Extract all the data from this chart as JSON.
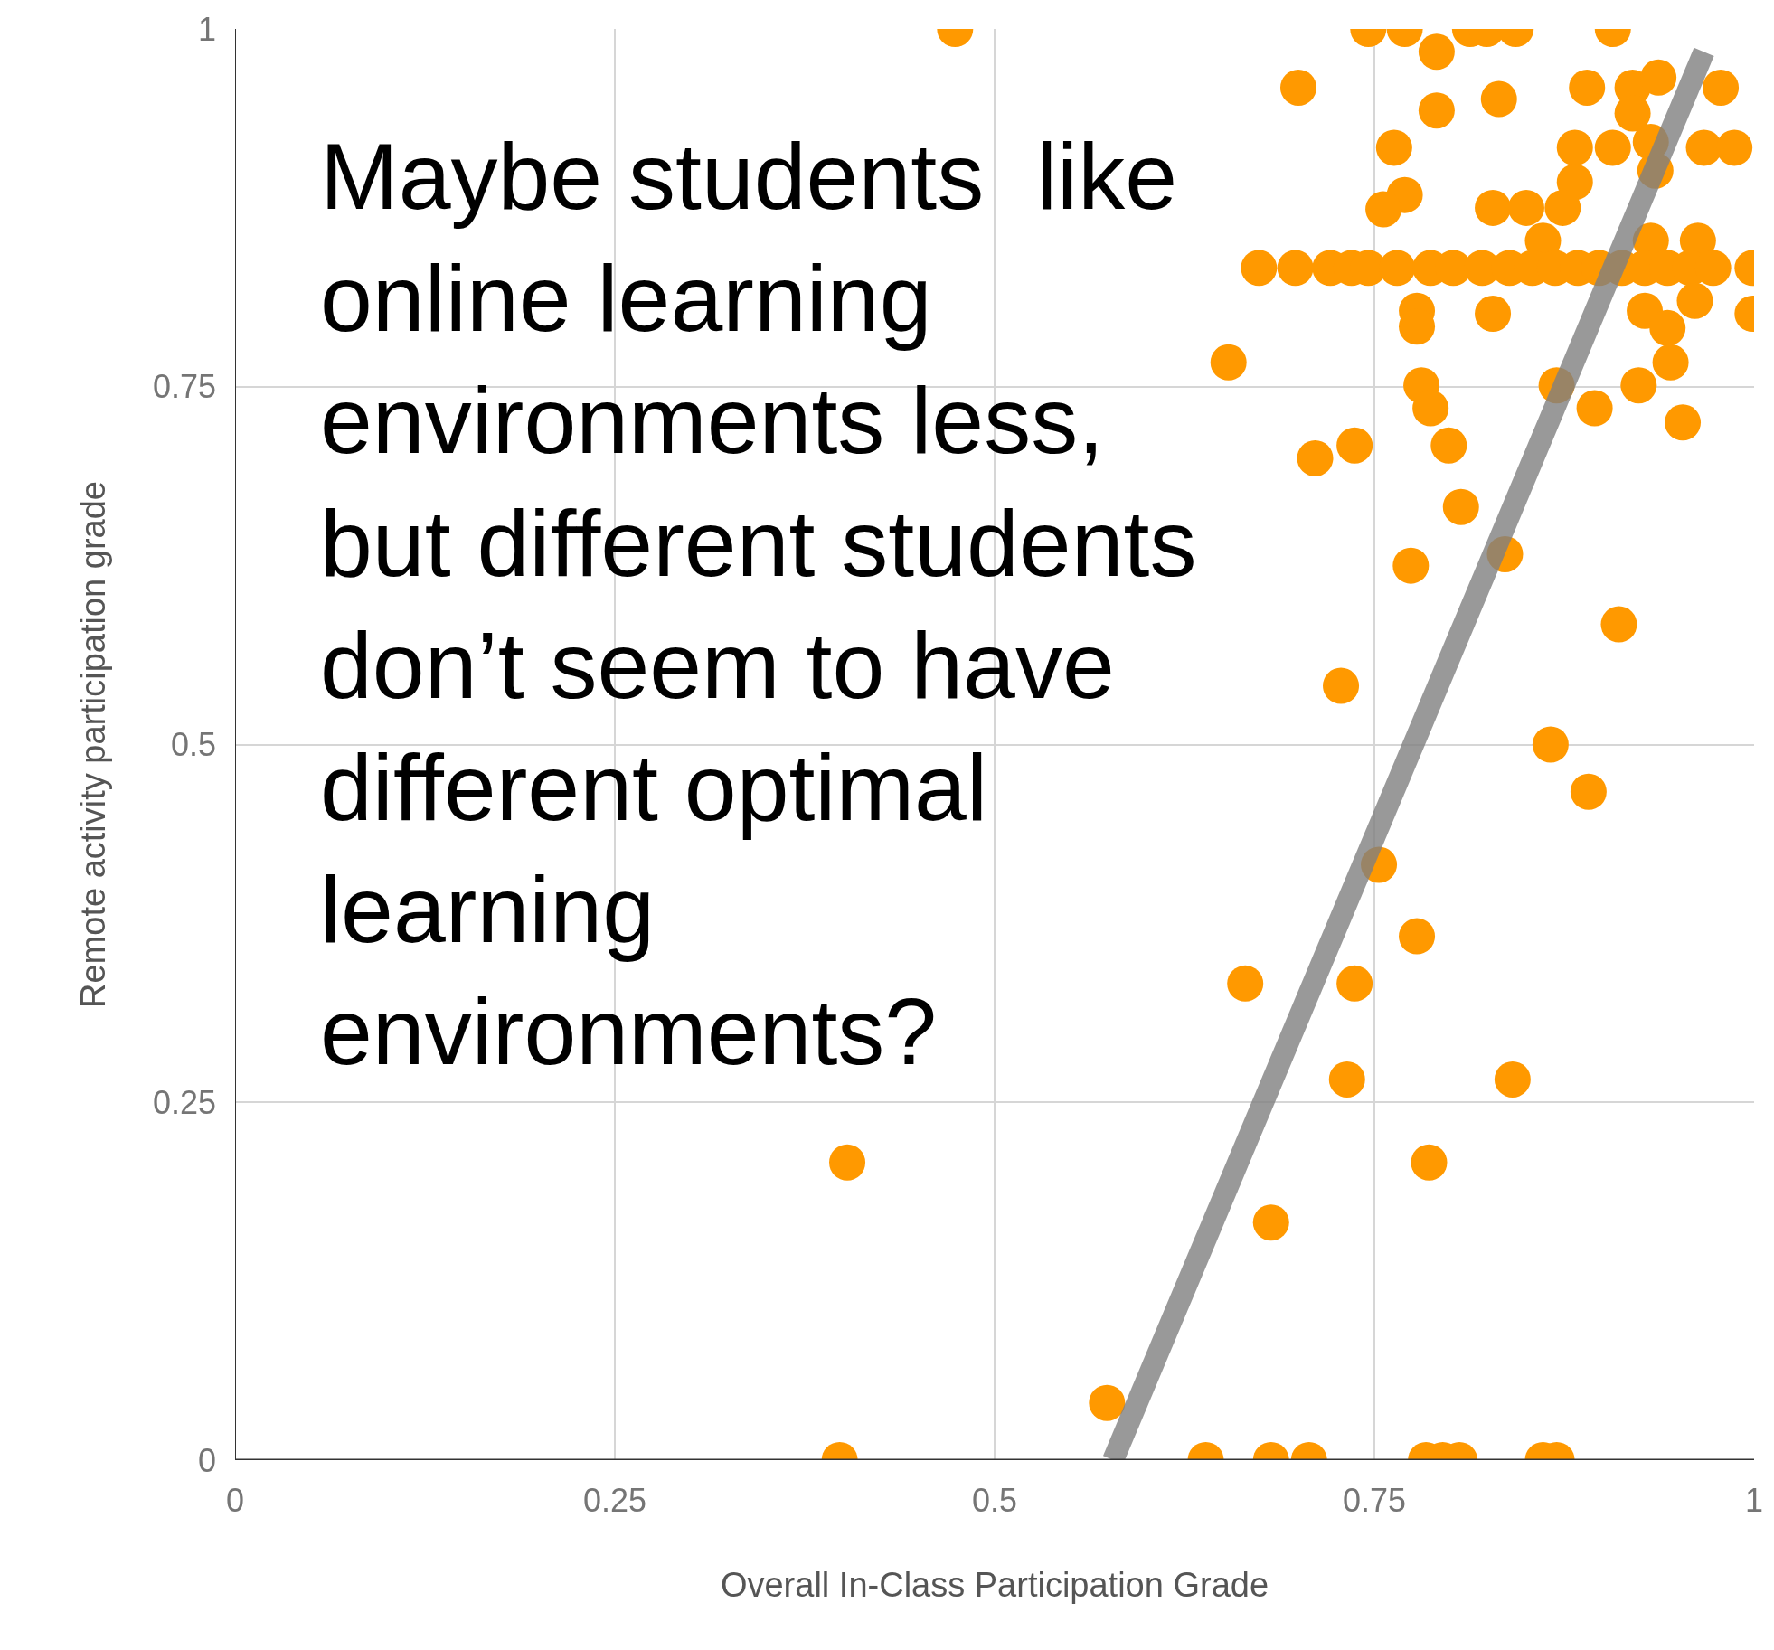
{
  "chart_data": {
    "type": "scatter",
    "xlabel": "Overall In-Class Participation Grade",
    "ylabel": "Remote activity participation grade",
    "annotations": [
      "Maybe students  like\nonline learning\nenvironments less,\nbut different students\ndon’t seem to have\ndifferent optimal\nlearning\nenvironments?"
    ],
    "xlim": [
      0,
      1
    ],
    "ylim": [
      0,
      1
    ],
    "xticks": [
      0,
      0.25,
      0.5,
      0.75,
      1
    ],
    "yticks": [
      0,
      0.25,
      0.5,
      0.75,
      1
    ],
    "grid": true,
    "series": [
      {
        "color": "#ff9900",
        "marker": "circle",
        "x": [
          0.474,
          0.746,
          0.77,
          0.813,
          0.824,
          0.843,
          0.907,
          0.791,
          0.7,
          0.89,
          0.92,
          0.937,
          0.978,
          0.832,
          0.791,
          0.92,
          0.763,
          0.882,
          0.907,
          0.932,
          0.967,
          0.987,
          0.935,
          0.882,
          0.77,
          0.756,
          0.828,
          0.85,
          0.874,
          0.861,
          0.932,
          0.963,
          0.674,
          0.698,
          0.721,
          0.735,
          0.746,
          0.765,
          0.787,
          0.802,
          0.821,
          0.839,
          0.854,
          0.869,
          0.884,
          0.898,
          0.913,
          0.928,
          0.943,
          0.958,
          0.973,
          0.999,
          0.778,
          0.778,
          0.828,
          0.928,
          0.943,
          0.961,
          0.999,
          0.654,
          0.945,
          0.781,
          0.87,
          0.924,
          0.787,
          0.895,
          0.953,
          0.711,
          0.737,
          0.799,
          0.807,
          0.836,
          0.774,
          0.911,
          0.728,
          0.866,
          0.891,
          0.753,
          0.778,
          0.665,
          0.737,
          0.732,
          0.841,
          0.403,
          0.786,
          0.682,
          0.574,
          0.398,
          0.639,
          0.682,
          0.707,
          0.784,
          0.795,
          0.806,
          0.861,
          0.87
        ],
        "values": [
          1,
          1,
          1,
          1,
          1,
          1,
          1,
          0.984,
          0.959,
          0.959,
          0.959,
          0.966,
          0.959,
          0.951,
          0.943,
          0.941,
          0.917,
          0.917,
          0.917,
          0.921,
          0.917,
          0.917,
          0.901,
          0.893,
          0.884,
          0.874,
          0.875,
          0.875,
          0.875,
          0.852,
          0.852,
          0.852,
          0.833,
          0.833,
          0.833,
          0.833,
          0.833,
          0.833,
          0.833,
          0.833,
          0.833,
          0.833,
          0.833,
          0.833,
          0.833,
          0.833,
          0.833,
          0.833,
          0.833,
          0.833,
          0.833,
          0.833,
          0.803,
          0.792,
          0.801,
          0.803,
          0.791,
          0.81,
          0.801,
          0.767,
          0.767,
          0.751,
          0.751,
          0.751,
          0.735,
          0.735,
          0.725,
          0.7,
          0.709,
          0.709,
          0.666,
          0.633,
          0.625,
          0.584,
          0.541,
          0.5,
          0.467,
          0.416,
          0.366,
          0.333,
          0.333,
          0.266,
          0.266,
          0.208,
          0.208,
          0.166,
          0.04,
          0,
          0,
          0,
          0,
          0,
          0,
          0,
          0,
          0
        ]
      },
      {
        "type": "line",
        "color": "#808080",
        "x": [
          0.578,
          0.967
        ],
        "values": [
          0,
          0.984
        ]
      }
    ]
  }
}
